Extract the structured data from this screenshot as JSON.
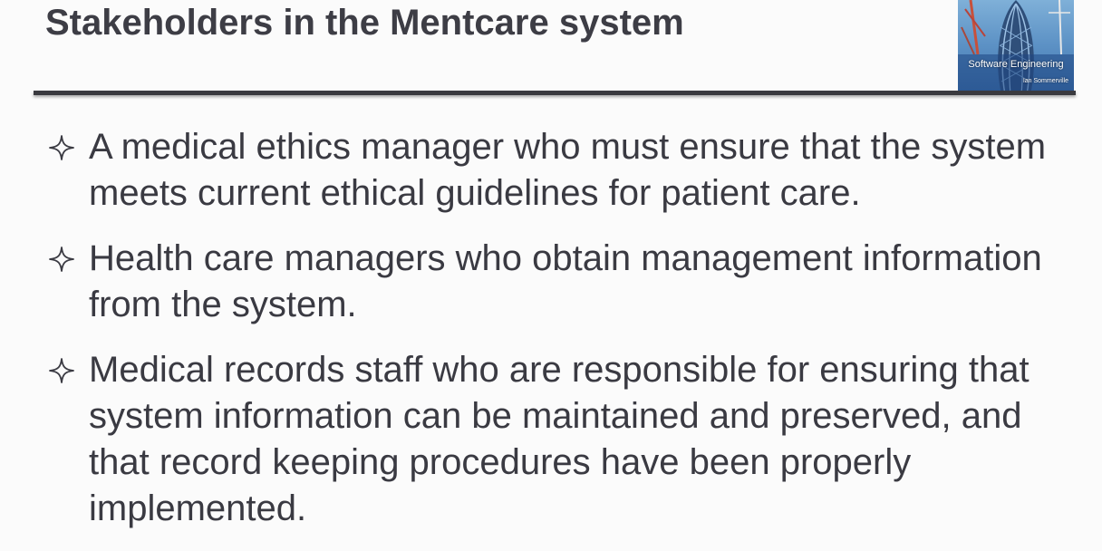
{
  "slide": {
    "title": "Stakeholders in the Mentcare system"
  },
  "book_cover": {
    "title": "Software Engineering",
    "author": "Ian Sommerville"
  },
  "bullets": [
    {
      "icon": "four-point-star-icon",
      "text": "A medical ethics manager who must ensure that the system meets current ethical guidelines for patient care."
    },
    {
      "icon": "four-point-star-icon",
      "text": "Health care managers who obtain management information from the system."
    },
    {
      "icon": "four-point-star-icon",
      "text": "Medical records staff who are responsible for ensuring that system information can be maintained and preserved, and that record keeping procedures have been properly implemented."
    }
  ]
}
